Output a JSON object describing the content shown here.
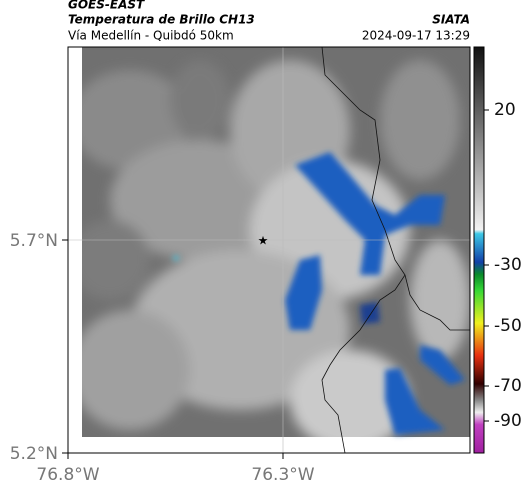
{
  "header": {
    "satellite": "GOES-EAST",
    "title": "Temperatura de Brillo CH13",
    "organization": "SIATA",
    "route": "Vía Medellín - Quibdó 50km",
    "timestamp": "2024-09-17 13:29"
  },
  "axes": {
    "lat_labels": [
      "5.7°N",
      "5.2°N"
    ],
    "lon_labels": [
      "76.8°W",
      "76.3°W"
    ]
  },
  "colorbar": {
    "ticks": [
      "20",
      "-30",
      "-50",
      "-70",
      "-90"
    ]
  }
}
